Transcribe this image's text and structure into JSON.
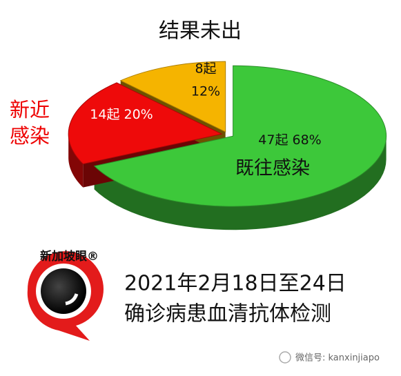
{
  "chart_data": {
    "type": "pie",
    "categories": [
      "既往感染",
      "新近感染",
      "结果未出"
    ],
    "values": [
      68,
      20,
      12
    ],
    "value_labels": [
      "68%",
      "20%",
      "12%"
    ],
    "counts": [
      47,
      14,
      8
    ],
    "count_labels": [
      "47起",
      "14起",
      "8起"
    ],
    "colors": [
      "#3dc83a",
      "#ee0a0a",
      "#f5b400"
    ],
    "caption": [
      "2021年2月18日至24日",
      "确诊病患血清抗体检测"
    ],
    "logo": "新加坡眼®",
    "watermark": "微信号: kanxinjiapo"
  }
}
